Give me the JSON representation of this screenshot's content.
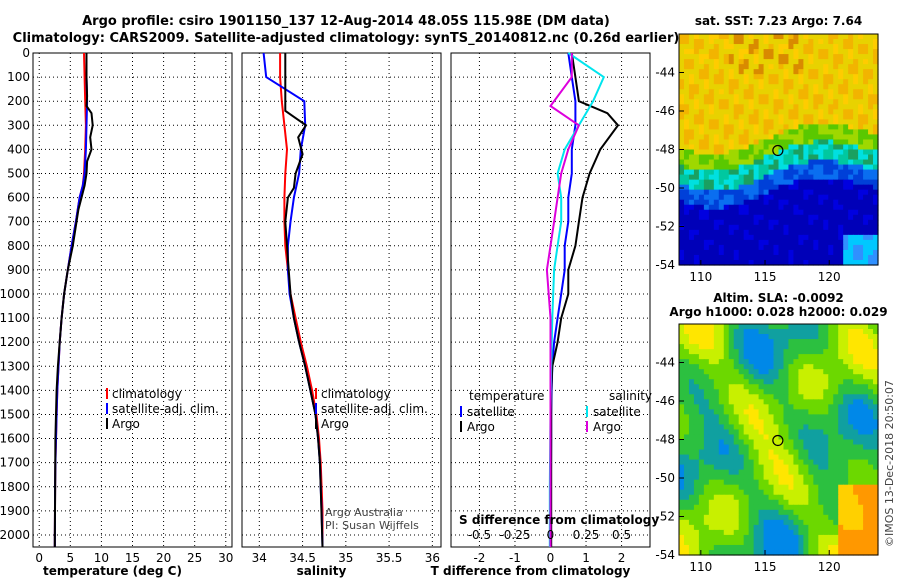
{
  "header": {
    "line1": "Argo profile: csiro 1901150_137 12-Aug-2014 48.05S 115.98E (DM data)",
    "line2": "Climatology: CARS2009. Satellite-adjusted climatology: synTS_20140812.nc (0.26d earlier)"
  },
  "side_credit": "©IMOS 13-Dec-2018 20:50:07",
  "chart_data": [
    {
      "id": "temperature",
      "type": "line",
      "xlabel": "temperature (deg C)",
      "xlim": [
        -1,
        31
      ],
      "xticks": [
        "0",
        "5",
        "10",
        "15",
        "20",
        "25",
        "30"
      ],
      "xtick_values": [
        0,
        5,
        10,
        15,
        20,
        25,
        30
      ],
      "ylim": [
        2050,
        0
      ],
      "yticks": [
        "0",
        "100",
        "200",
        "300",
        "400",
        "500",
        "600",
        "700",
        "800",
        "900",
        "1000",
        "1100",
        "1200",
        "1300",
        "1400",
        "1500",
        "1600",
        "1700",
        "1800",
        "1900",
        "2000"
      ],
      "legend": [
        "climatology",
        "satellite-adj. clim.",
        "Argo"
      ],
      "series": [
        {
          "name": "climatology",
          "color": "#ff0000",
          "x": [
            7.2,
            7.3,
            7.4,
            7.5,
            7.4,
            7.2,
            7.0,
            6.5,
            5.9,
            5.2,
            4.6,
            4.0,
            3.6,
            3.3,
            3.1,
            2.9,
            2.8,
            2.7,
            2.6,
            2.55,
            2.5
          ],
          "y": [
            0,
            100,
            200,
            300,
            400,
            500,
            550,
            600,
            700,
            800,
            900,
            1000,
            1100,
            1200,
            1300,
            1400,
            1500,
            1600,
            1700,
            1800,
            2050
          ]
        },
        {
          "name": "satellite-adj. clim.",
          "color": "#0000ff",
          "x": [
            7.6,
            7.6,
            7.7,
            7.6,
            7.5,
            7.3,
            7.0,
            6.5,
            5.9,
            5.2,
            4.6,
            4.0,
            3.6,
            3.3,
            3.1,
            2.9,
            2.8,
            2.7,
            2.6,
            2.55,
            2.5
          ],
          "y": [
            0,
            100,
            200,
            300,
            400,
            500,
            550,
            600,
            700,
            800,
            900,
            1000,
            1100,
            1200,
            1300,
            1400,
            1500,
            1600,
            1700,
            1800,
            2050
          ]
        },
        {
          "name": "Argo",
          "color": "#000000",
          "x": [
            7.6,
            7.6,
            7.7,
            7.6,
            8.4,
            8.6,
            8.2,
            8.4,
            7.7,
            7.6,
            7.3,
            6.8,
            6.3,
            5.4,
            4.6,
            4.0,
            3.6,
            3.3,
            3.0,
            2.8,
            2.6,
            2.5
          ],
          "y": [
            0,
            100,
            180,
            220,
            250,
            300,
            350,
            400,
            450,
            500,
            550,
            600,
            650,
            800,
            900,
            1000,
            1100,
            1200,
            1300,
            1400,
            1600,
            2050
          ]
        }
      ]
    },
    {
      "id": "salinity",
      "type": "line",
      "xlabel": "salinity",
      "xlim": [
        33.8,
        36.1
      ],
      "xticks": [
        "34",
        "34.5",
        "35",
        "35.5",
        "36"
      ],
      "xtick_values": [
        34,
        34.5,
        35,
        35.5,
        36
      ],
      "ylim": [
        2050,
        0
      ],
      "legend": [
        "climatology",
        "satellite-adj. clim.",
        "Argo"
      ],
      "series": [
        {
          "name": "climatology",
          "color": "#ff0000",
          "x": [
            34.24,
            34.24,
            34.26,
            34.29,
            34.32,
            34.3,
            34.29,
            34.29,
            34.3,
            34.33,
            34.36,
            34.42,
            34.48,
            34.55,
            34.61,
            34.66,
            34.69,
            34.71,
            34.72,
            34.73,
            34.73
          ],
          "y": [
            0,
            100,
            200,
            300,
            400,
            500,
            600,
            700,
            800,
            900,
            1000,
            1100,
            1200,
            1300,
            1400,
            1500,
            1600,
            1700,
            1800,
            1900,
            2050
          ]
        },
        {
          "name": "satellite-adj. clim.",
          "color": "#0000ff",
          "x": [
            34.05,
            34.08,
            34.52,
            34.53,
            34.48,
            34.46,
            34.4,
            34.36,
            34.33,
            34.33,
            34.35,
            34.4,
            34.46,
            34.53,
            34.59,
            34.65,
            34.68,
            34.7,
            34.71,
            34.72,
            34.73
          ],
          "y": [
            0,
            100,
            200,
            300,
            400,
            500,
            600,
            700,
            800,
            900,
            1000,
            1100,
            1200,
            1300,
            1400,
            1500,
            1600,
            1700,
            1800,
            1900,
            2050
          ]
        },
        {
          "name": "Argo",
          "color": "#000000",
          "x": [
            34.3,
            34.3,
            34.3,
            34.3,
            34.38,
            34.54,
            34.45,
            34.5,
            34.42,
            34.4,
            34.33,
            34.3,
            34.32,
            34.34,
            34.36,
            34.4,
            34.46,
            34.53,
            34.59,
            34.65,
            34.68,
            34.7,
            34.71,
            34.73
          ],
          "y": [
            0,
            100,
            200,
            240,
            260,
            300,
            350,
            420,
            500,
            560,
            600,
            700,
            800,
            900,
            1000,
            1100,
            1200,
            1300,
            1400,
            1500,
            1600,
            1700,
            1800,
            2050
          ]
        }
      ],
      "credits": [
        "Argo Australia",
        "PI: Susan Wijffels"
      ]
    },
    {
      "id": "difference",
      "type": "line",
      "xlabel": "T difference from climatology",
      "xlabel_top": "S difference from climatology",
      "xlim": [
        -2.8,
        2.8
      ],
      "xticks": [
        "-2",
        "-1",
        "0",
        "1",
        "2"
      ],
      "xtick_values": [
        -2,
        -1,
        0,
        1,
        2
      ],
      "xticks_top": [
        "-0.5",
        "-0.25",
        "0",
        "0.25",
        "0.5"
      ],
      "ylim": [
        2050,
        0
      ],
      "legend_titles": [
        "temperature",
        "salinity"
      ],
      "legend_left": [
        "satellite",
        "Argo"
      ],
      "legend_right": [
        "satellite",
        "Argo"
      ],
      "series": [
        {
          "name": "satellite",
          "group": "temperature",
          "color": "#0000ff",
          "x": [
            0.5,
            0.6,
            0.7,
            0.7,
            0.6,
            0.6,
            0.5,
            0.5,
            0.4,
            0.4,
            0.3,
            0.2,
            0.1,
            0.05,
            0.03,
            0.02,
            0.02,
            0.01,
            0.01
          ],
          "y": [
            0,
            100,
            200,
            300,
            400,
            500,
            600,
            700,
            800,
            900,
            1000,
            1100,
            1200,
            1300,
            1400,
            1500,
            1600,
            1800,
            2050
          ]
        },
        {
          "name": "Argo",
          "group": "temperature",
          "color": "#000000",
          "x": [
            0.6,
            0.7,
            0.8,
            1.6,
            1.9,
            1.4,
            1.1,
            0.9,
            0.8,
            0.7,
            0.5,
            0.5,
            0.3,
            0.2,
            0.05,
            0.02,
            0.02,
            0.02
          ],
          "y": [
            0,
            100,
            200,
            250,
            300,
            400,
            500,
            600,
            700,
            800,
            900,
            1000,
            1100,
            1200,
            1300,
            1400,
            1800,
            2050
          ]
        },
        {
          "name": "satellite",
          "group": "salinity",
          "color": "#00e5ee",
          "x": [
            0.5,
            1.5,
            1.2,
            0.8,
            0.4,
            0.2,
            0.3,
            0.3,
            0.2,
            0.1,
            0.05,
            0.02,
            0.0,
            -0.02,
            -0.02
          ],
          "y": [
            0,
            100,
            200,
            300,
            400,
            500,
            600,
            700,
            800,
            900,
            1100,
            1300,
            1500,
            1800,
            2050
          ]
        },
        {
          "name": "Argo",
          "group": "salinity",
          "color": "#dd00dd",
          "x": [
            0.6,
            0.6,
            0.0,
            0.8,
            0.5,
            0.3,
            0.2,
            0.1,
            -0.1,
            0.0,
            0.0,
            0.0
          ],
          "y": [
            0,
            100,
            220,
            300,
            400,
            500,
            600,
            700,
            900,
            1100,
            1400,
            2050
          ]
        }
      ]
    }
  ],
  "maps": [
    {
      "id": "sst",
      "title": "sat. SST: 7.23 Argo: 7.64",
      "xticks": [
        "110",
        "115",
        "120"
      ],
      "yticks": [
        "-44",
        "-46",
        "-48",
        "-50",
        "-52",
        "-54"
      ],
      "marker": {
        "lon": 116.0,
        "lat": -48.05
      }
    },
    {
      "id": "sla",
      "title1": "Altim. SLA: -0.0092",
      "title2": "Argo h1000: 0.028 h2000: 0.029",
      "xticks": [
        "110",
        "115",
        "120"
      ],
      "yticks": [
        "-44",
        "-46",
        "-48",
        "-50",
        "-52",
        "-54"
      ],
      "marker": {
        "lon": 116.0,
        "lat": -48.05
      }
    }
  ]
}
